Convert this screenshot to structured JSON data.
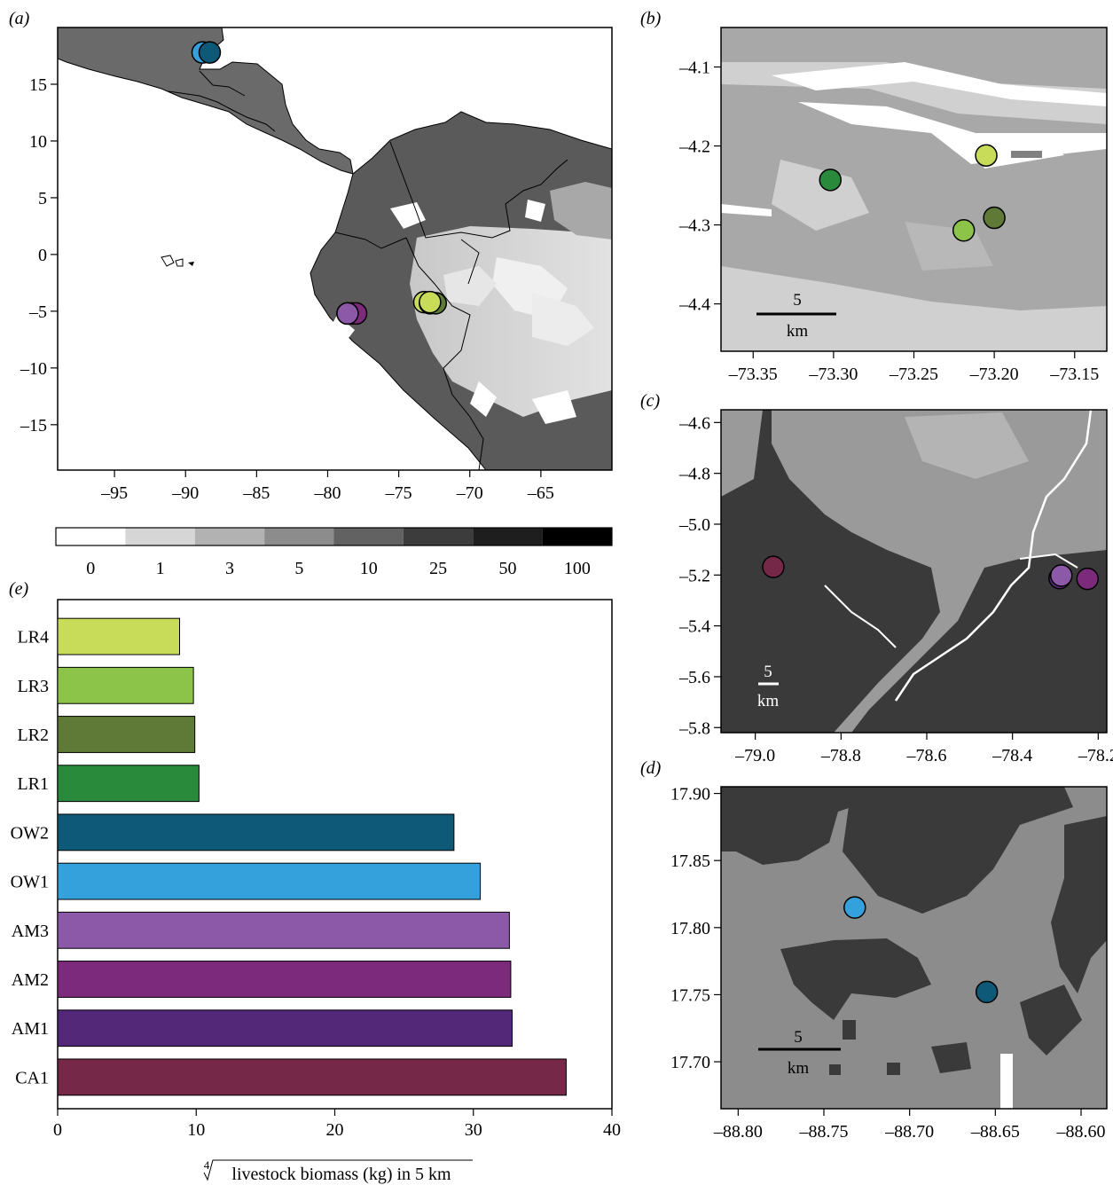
{
  "colors": {
    "LR4": "#c8dc5a",
    "LR3": "#8cc44a",
    "LR2": "#5e7a36",
    "LR1": "#2a8a3c",
    "OW2": "#0e5878",
    "OW1": "#34a0dc",
    "AM3": "#8c58a8",
    "AM2": "#7c2a7c",
    "AM1": "#542878",
    "CA1": "#762848"
  },
  "legend": {
    "bins": [
      "0",
      "1",
      "3",
      "5",
      "10",
      "25",
      "50",
      "100"
    ],
    "shades": [
      "#ffffff",
      "#d6d6d6",
      "#b2b2b2",
      "#8c8c8c",
      "#626262",
      "#3c3c3c",
      "#1e1e1e",
      "#000000"
    ]
  },
  "chart_data": [
    {
      "panel": "(a)",
      "type": "scatter",
      "xticks": [
        "–95",
        "–90",
        "–85",
        "–80",
        "–75",
        "–70",
        "–65"
      ],
      "yticks": [
        "15",
        "10",
        "5",
        "0",
        "–5",
        "–10",
        "–15"
      ],
      "xlim": [
        -99,
        -60
      ],
      "ylim": [
        -19,
        20
      ],
      "points": [
        {
          "x": -88.8,
          "y": 17.8,
          "color": "#34a0dc"
        },
        {
          "x": -88.3,
          "y": 17.8,
          "color": "#0e5878"
        },
        {
          "x": -78.6,
          "y": -5.2,
          "color": "#762848"
        },
        {
          "x": -78.3,
          "y": -5.2,
          "color": "#542878"
        },
        {
          "x": -78.0,
          "y": -5.2,
          "color": "#7c2a7c"
        },
        {
          "x": -78.6,
          "y": -5.2,
          "color": "#8c58a8"
        },
        {
          "x": -73.2,
          "y": -4.2,
          "color": "#c8dc5a"
        },
        {
          "x": -72.8,
          "y": -4.3,
          "color": "#8cc44a"
        },
        {
          "x": -72.4,
          "y": -4.3,
          "color": "#5e7a36"
        },
        {
          "x": -72.8,
          "y": -4.2,
          "color": "#c8dc5a"
        }
      ]
    },
    {
      "panel": "(b)",
      "type": "scatter",
      "xticks": [
        "–73.35",
        "–73.30",
        "–73.25",
        "–73.20",
        "–73.15"
      ],
      "yticks": [
        "–4.1",
        "–4.2",
        "–4.3",
        "–4.4"
      ],
      "xlim": [
        -73.37,
        -73.13
      ],
      "ylim": [
        -4.46,
        -4.05
      ],
      "scale": {
        "value": "5",
        "unit": "km"
      },
      "points": [
        {
          "x": -73.302,
          "y": -4.243,
          "color": "#2a8a3c"
        },
        {
          "x": -73.205,
          "y": -4.212,
          "color": "#c8dc5a"
        },
        {
          "x": -73.2,
          "y": -4.291,
          "color": "#5e7a36"
        },
        {
          "x": -73.219,
          "y": -4.307,
          "color": "#8cc44a"
        }
      ]
    },
    {
      "panel": "(c)",
      "type": "scatter",
      "xticks": [
        "–79.0",
        "–78.8",
        "–78.6",
        "–78.4",
        "–78.2"
      ],
      "yticks": [
        "–4.6",
        "–4.8",
        "–5.0",
        "–5.2",
        "–5.4",
        "–5.6",
        "–5.8"
      ],
      "xlim": [
        -79.08,
        -78.18
      ],
      "ylim": [
        -5.82,
        -4.55
      ],
      "scale": {
        "value": "5",
        "unit": "km"
      },
      "points": [
        {
          "x": -78.958,
          "y": -5.168,
          "color": "#762848"
        },
        {
          "x": -78.29,
          "y": -5.212,
          "color": "#542878"
        },
        {
          "x": -78.286,
          "y": -5.202,
          "color": "#8c58a8"
        },
        {
          "x": -78.225,
          "y": -5.215,
          "color": "#7c2a7c"
        }
      ]
    },
    {
      "panel": "(d)",
      "type": "scatter",
      "xticks": [
        "–88.80",
        "–88.75",
        "–88.70",
        "–88.65",
        "–88.60"
      ],
      "yticks": [
        "17.90",
        "17.85",
        "17.80",
        "17.75",
        "17.70"
      ],
      "xlim": [
        -88.81,
        -88.585
      ],
      "ylim": [
        17.665,
        17.905
      ],
      "scale": {
        "value": "5",
        "unit": "km"
      },
      "points": [
        {
          "x": -88.732,
          "y": 17.815,
          "color": "#34a0dc"
        },
        {
          "x": -88.655,
          "y": 17.752,
          "color": "#0e5878"
        }
      ]
    },
    {
      "panel": "(e)",
      "type": "bar",
      "orientation": "horizontal",
      "categories": [
        "LR4",
        "LR3",
        "LR2",
        "LR1",
        "OW2",
        "OW1",
        "AM3",
        "AM2",
        "AM1",
        "CA1"
      ],
      "values": [
        8.8,
        9.8,
        9.9,
        10.2,
        28.6,
        30.5,
        32.6,
        32.7,
        32.8,
        36.7
      ],
      "xlim": [
        0,
        40
      ],
      "xticks": [
        "0",
        "10",
        "20",
        "30",
        "40"
      ],
      "xlabel_root": "4",
      "xlabel": "livestock biomass (kg) in 5 km"
    }
  ]
}
